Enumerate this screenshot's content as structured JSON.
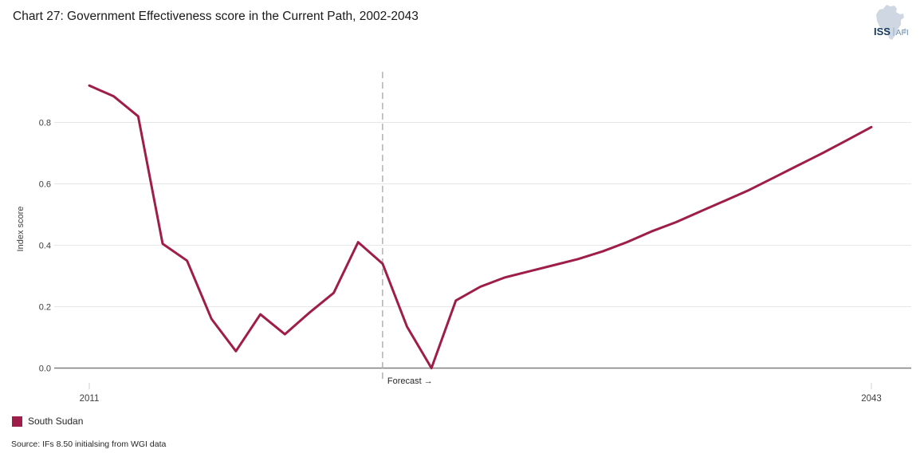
{
  "header": {
    "title": "Chart 27: Government Effectiveness score in the Current Path, 2002-2043"
  },
  "logo": {
    "org": "ISS",
    "separator": "|",
    "unit": "AFI"
  },
  "chart_data": {
    "type": "line",
    "title": "Chart 27: Government Effectiveness score in the Current Path, 2002-2043",
    "xlabel": "",
    "ylabel": "Index score",
    "ylim": [
      0,
      0.97
    ],
    "x_range": [
      2011,
      2043
    ],
    "grid": "horizontal",
    "legend_position": "bottom-left",
    "y_ticks": [
      {
        "value": 0.0,
        "label": "0.0"
      },
      {
        "value": 0.2,
        "label": "0.2"
      },
      {
        "value": 0.4,
        "label": "0.4"
      },
      {
        "value": 0.6,
        "label": "0.6"
      },
      {
        "value": 0.8,
        "label": "0.8"
      }
    ],
    "x_ticks": [
      {
        "year": 2011,
        "label": "2011"
      },
      {
        "year": 2043,
        "label": "2043"
      }
    ],
    "forecast": {
      "year": 2023,
      "label": "Forecast →"
    },
    "series": [
      {
        "name": "South Sudan",
        "color": "#9e1d49",
        "x": [
          2011,
          2012,
          2013,
          2014,
          2015,
          2016,
          2017,
          2018,
          2019,
          2020,
          2021,
          2022,
          2023,
          2024,
          2025,
          2026,
          2027,
          2028,
          2029,
          2030,
          2031,
          2032,
          2033,
          2034,
          2035,
          2036,
          2037,
          2038,
          2039,
          2040,
          2041,
          2042,
          2043
        ],
        "values": [
          0.92,
          0.885,
          0.82,
          0.405,
          0.35,
          0.16,
          0.055,
          0.175,
          0.11,
          0.18,
          0.245,
          0.41,
          0.34,
          0.135,
          0.0,
          0.22,
          0.265,
          0.295,
          0.315,
          0.335,
          0.355,
          0.38,
          0.41,
          0.445,
          0.475,
          0.51,
          0.545,
          0.58,
          0.62,
          0.66,
          0.7,
          0.742,
          0.785
        ]
      }
    ]
  },
  "legend": {
    "label": "South Sudan",
    "color": "#9e1d49"
  },
  "footer": {
    "source": "Source: IFs 8.50 initialsing from WGI data"
  },
  "colors": {
    "line": "#9e1d49",
    "gridline": "#e7e7e7",
    "axis": "#7f7f7f",
    "forecast_dash": "#ababab",
    "tick_text": "#3d3d3d"
  }
}
